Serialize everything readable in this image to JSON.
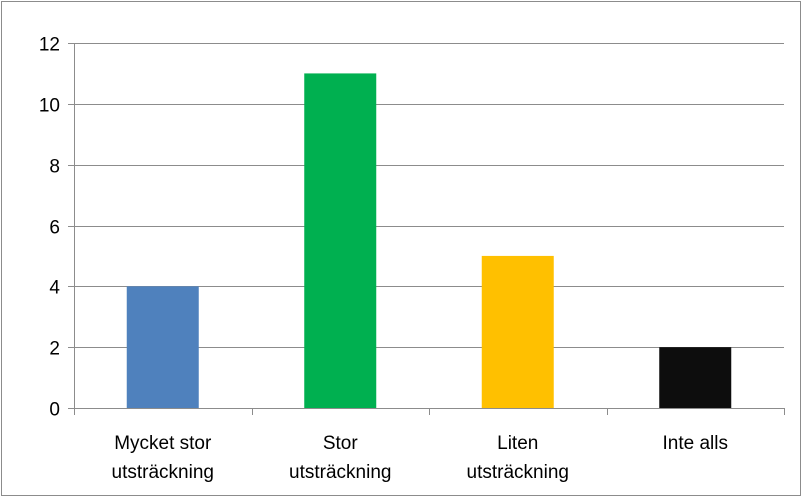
{
  "chart_data": {
    "type": "bar",
    "categories": [
      [
        "Mycket stor",
        "utsträckning"
      ],
      [
        "Stor",
        "utsträckning"
      ],
      [
        "Liten",
        "utsträckning"
      ],
      [
        "Inte alls"
      ]
    ],
    "values": [
      4,
      11,
      5,
      2
    ],
    "colors": [
      "#4f81bd",
      "#00b050",
      "#ffc000",
      "#0d0d0d"
    ],
    "ylim": [
      0,
      12
    ],
    "yticks": [
      0,
      2,
      4,
      6,
      8,
      10,
      12
    ],
    "title": "",
    "xlabel": "",
    "ylabel": "",
    "grid": true,
    "legend": "none"
  }
}
